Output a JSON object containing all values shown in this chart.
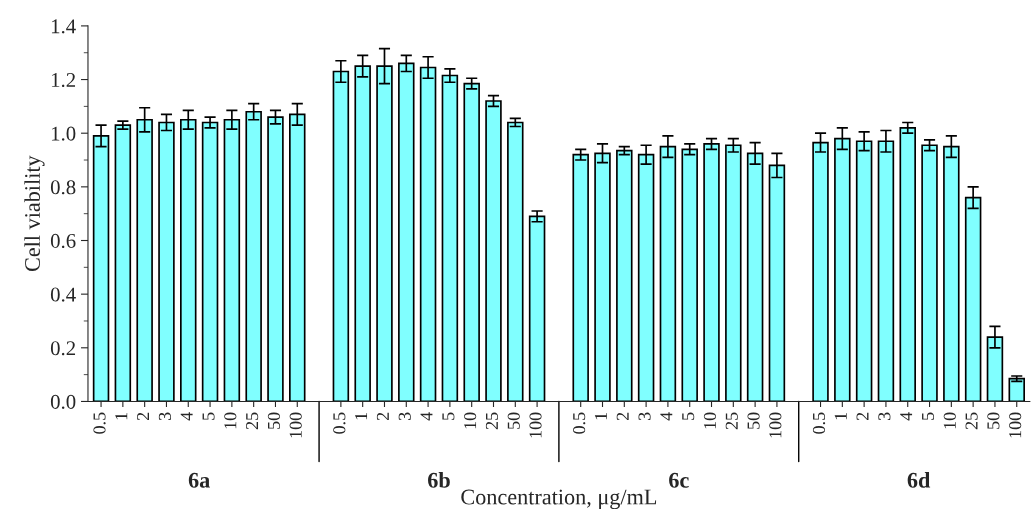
{
  "chart_data": {
    "type": "bar",
    "xlabel": "Concentration, μg/mL",
    "ylabel": "Cell viability",
    "categories": [
      "0.5",
      "1",
      "2",
      "3",
      "4",
      "5",
      "10",
      "25",
      "50",
      "100",
      null,
      "0.5",
      "1",
      "2",
      "3",
      "4",
      "5",
      "10",
      "25",
      "50",
      "100",
      null,
      "0.5",
      "1",
      "2",
      "3",
      "4",
      "5",
      "10",
      "25",
      "50",
      "100",
      null,
      "0.5",
      "1",
      "2",
      "3",
      "4",
      "5",
      "10",
      "25",
      "50",
      "100"
    ],
    "values": [
      0.99,
      1.03,
      1.05,
      1.04,
      1.05,
      1.04,
      1.05,
      1.08,
      1.06,
      1.07,
      null,
      1.23,
      1.25,
      1.25,
      1.26,
      1.245,
      1.215,
      1.185,
      1.12,
      1.04,
      0.69,
      null,
      0.92,
      0.925,
      0.935,
      0.92,
      0.95,
      0.94,
      0.96,
      0.955,
      0.925,
      0.88,
      null,
      0.965,
      0.98,
      0.97,
      0.97,
      1.02,
      0.955,
      0.95,
      0.76,
      0.24,
      0.085
    ],
    "errors": [
      0.04,
      0.015,
      0.045,
      0.03,
      0.035,
      0.02,
      0.035,
      0.03,
      0.025,
      0.04,
      null,
      0.04,
      0.04,
      0.065,
      0.03,
      0.04,
      0.025,
      0.02,
      0.02,
      0.015,
      0.02,
      null,
      0.02,
      0.035,
      0.015,
      0.035,
      0.04,
      0.02,
      0.02,
      0.025,
      0.04,
      0.045,
      null,
      0.035,
      0.04,
      0.035,
      0.04,
      0.02,
      0.02,
      0.04,
      0.04,
      0.04,
      0.01
    ],
    "color": "#80ffff",
    "annotations": [
      "6a",
      "6b",
      "6c",
      "6d"
    ],
    "ylim": [
      0,
      1.4
    ],
    "yticks": [
      {
        "value": 0,
        "label": "0.0"
      },
      {
        "value": 0.2,
        "label": "0.2"
      },
      {
        "value": 0.4,
        "label": "0.4"
      },
      {
        "value": 0.6,
        "label": "0.6"
      },
      {
        "value": 0.8,
        "label": "0.8"
      },
      {
        "value": 1.0,
        "label": "1.0"
      },
      {
        "value": 1.2,
        "label": "1.2"
      },
      {
        "value": 1.4,
        "label": "1.4"
      }
    ],
    "grid": false,
    "legend": false
  }
}
